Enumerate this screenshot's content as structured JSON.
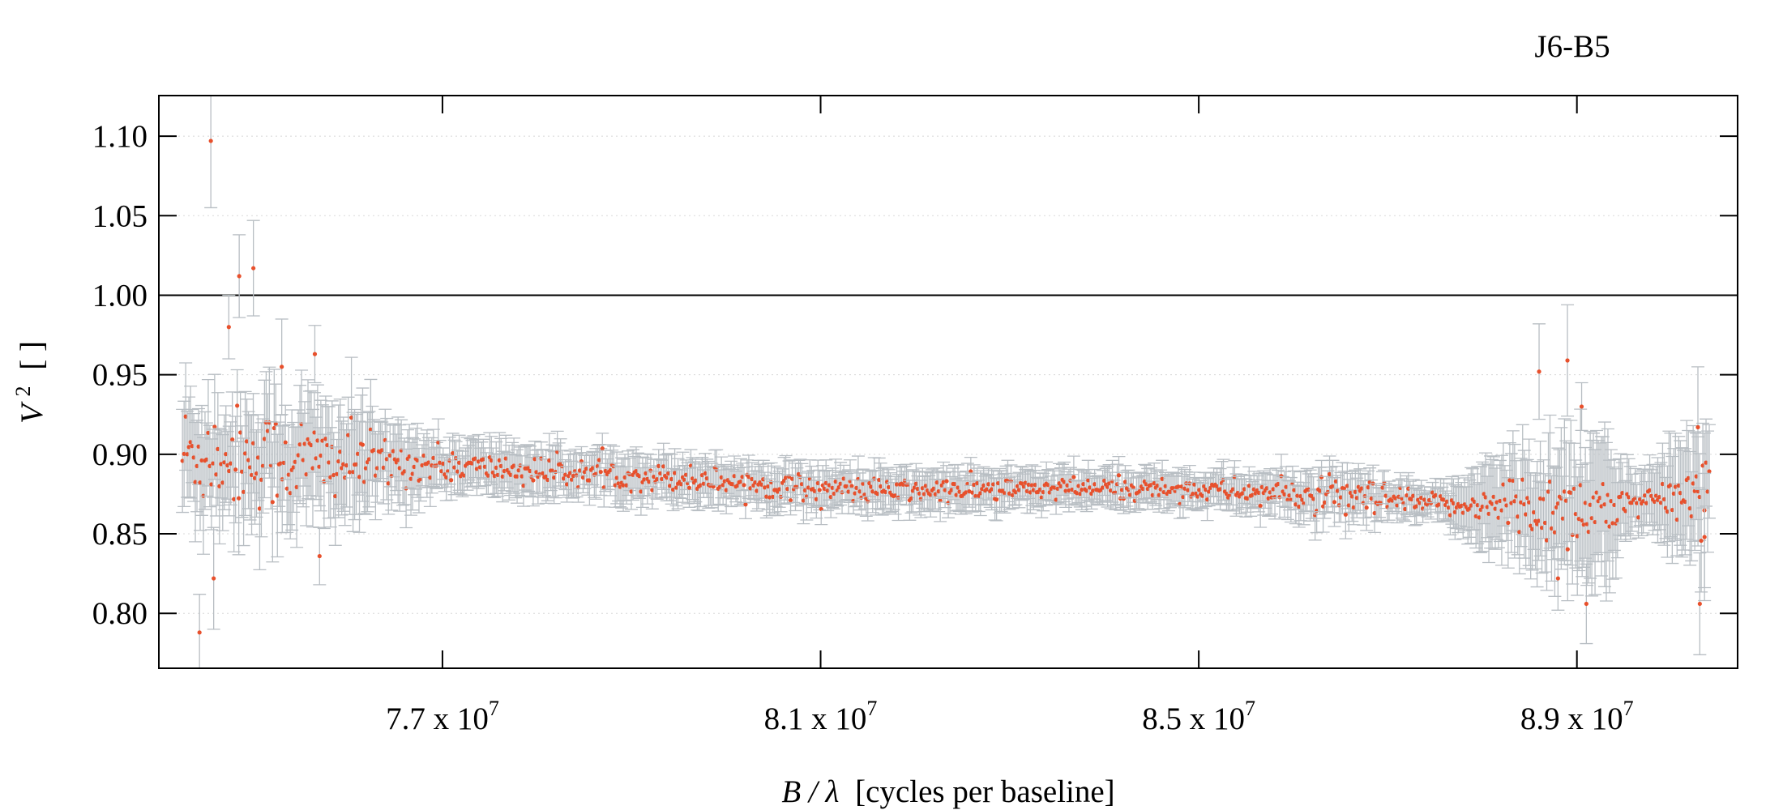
{
  "chart_data": {
    "type": "scatter",
    "title": "J6-B5",
    "xlabel": {
      "main": "B / λ",
      "unit": "[cycles per baseline]"
    },
    "ylabel": {
      "main": "V",
      "sup": "2",
      "unit": "[ ]"
    },
    "xlim": [
      74000000,
      90700000
    ],
    "ylim": [
      0.7655,
      1.1255
    ],
    "reference_line": 1.0,
    "grid": "horizontal-dotted",
    "legend": "none",
    "colors": {
      "points": "#e8502c",
      "errorbars": "#b8bec3"
    },
    "x_ticks": [
      {
        "value": 77000000,
        "mantissa": "7.7 x 10",
        "exp": "7"
      },
      {
        "value": 81000000,
        "mantissa": "8.1 x 10",
        "exp": "7"
      },
      {
        "value": 85000000,
        "mantissa": "8.5 x 10",
        "exp": "7"
      },
      {
        "value": 89000000,
        "mantissa": "8.9 x 10",
        "exp": "7"
      }
    ],
    "y_ticks": [
      {
        "value": 0.8,
        "label": "0.80"
      },
      {
        "value": 0.85,
        "label": "0.85"
      },
      {
        "value": 0.9,
        "label": "0.90"
      },
      {
        "value": 0.95,
        "label": "0.95"
      },
      {
        "value": 1.0,
        "label": "1.00"
      },
      {
        "value": 1.05,
        "label": "1.05"
      },
      {
        "value": 1.1,
        "label": "1.10"
      }
    ],
    "series": [
      {
        "x_start": 74250000,
        "x_end": 90400000,
        "count": 950,
        "trend_knots": [
          [
            74250000,
            0.905
          ],
          [
            76000000,
            0.895
          ],
          [
            78000000,
            0.885
          ],
          [
            80000000,
            0.885
          ],
          [
            82000000,
            0.88
          ],
          [
            84000000,
            0.875
          ],
          [
            86000000,
            0.873
          ],
          [
            88000000,
            0.872
          ],
          [
            89500000,
            0.868
          ],
          [
            90400000,
            0.875
          ]
        ],
        "scatter_knots": [
          [
            74250000,
            0.03
          ],
          [
            75500000,
            0.028
          ],
          [
            76500000,
            0.012
          ],
          [
            77500000,
            0.008
          ],
          [
            85000000,
            0.006
          ],
          [
            86000000,
            0.008
          ],
          [
            86800000,
            0.012
          ],
          [
            87500000,
            0.005
          ],
          [
            88000000,
            0.008
          ],
          [
            88500000,
            0.025
          ],
          [
            89300000,
            0.02
          ],
          [
            89500000,
            0.008
          ],
          [
            90000000,
            0.012
          ],
          [
            90400000,
            0.025
          ]
        ],
        "error_knots": [
          [
            74250000,
            0.03
          ],
          [
            76000000,
            0.03
          ],
          [
            77000000,
            0.014
          ],
          [
            80000000,
            0.012
          ],
          [
            85000000,
            0.01
          ],
          [
            86500000,
            0.013
          ],
          [
            87500000,
            0.008
          ],
          [
            88300000,
            0.03
          ],
          [
            89300000,
            0.04
          ],
          [
            89600000,
            0.015
          ],
          [
            90400000,
            0.04
          ]
        ],
        "outliers": [
          {
            "x": 74550000,
            "y": 1.097,
            "err": 0.042
          },
          {
            "x": 74850000,
            "y": 1.012,
            "err": 0.026
          },
          {
            "x": 75000000,
            "y": 1.017,
            "err": 0.03
          },
          {
            "x": 74430000,
            "y": 0.788,
            "err": 0.024
          },
          {
            "x": 74580000,
            "y": 0.822,
            "err": 0.032
          },
          {
            "x": 74740000,
            "y": 0.98,
            "err": 0.02
          },
          {
            "x": 75300000,
            "y": 0.955,
            "err": 0.03
          },
          {
            "x": 75650000,
            "y": 0.963,
            "err": 0.018
          },
          {
            "x": 75700000,
            "y": 0.836,
            "err": 0.018
          },
          {
            "x": 88600000,
            "y": 0.952,
            "err": 0.03
          },
          {
            "x": 88900000,
            "y": 0.959,
            "err": 0.035
          },
          {
            "x": 88800000,
            "y": 0.822,
            "err": 0.02
          },
          {
            "x": 89100000,
            "y": 0.806,
            "err": 0.025
          },
          {
            "x": 89050000,
            "y": 0.93,
            "err": 0.015
          },
          {
            "x": 90300000,
            "y": 0.806,
            "err": 0.032
          },
          {
            "x": 90280000,
            "y": 0.917,
            "err": 0.038
          },
          {
            "x": 90350000,
            "y": 0.848,
            "err": 0.04
          }
        ]
      }
    ]
  }
}
